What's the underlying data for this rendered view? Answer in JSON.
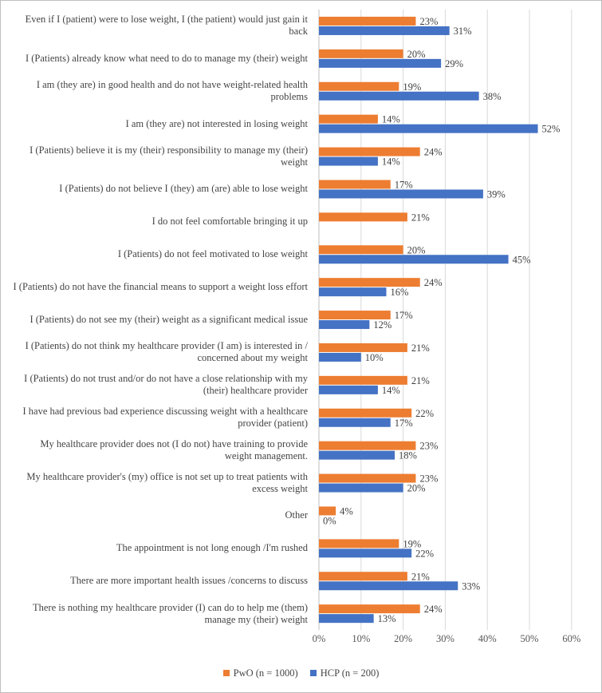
{
  "chart_data": {
    "type": "bar",
    "orientation": "horizontal",
    "categories": [
      "Even if I (patient) were to lose weight, I (the patient) would just gain it back",
      "I (Patients) already know what need to do to manage my (their) weight",
      "I am (they are) in good health and do not have weight-related health problems",
      "I am (they are) not interested in losing weight",
      "I (Patients) believe it is my (their) responsibility to manage my (their) weight",
      "I (Patients) do not believe I (they) am (are) able to lose weight",
      "I do not feel comfortable bringing it up",
      "I (Patients) do not feel motivated to lose weight",
      "I (Patients) do not have the financial means to support a weight loss effort",
      "I (Patients) do not see my (their) weight as a significant medical issue",
      "I (Patients) do not think my healthcare provider (I am) is interested in / concerned about my weight",
      "I (Patients) do not trust and/or do not have a close relationship with my (their) healthcare provider",
      "I have had previous bad experience discussing weight with a healthcare provider (patient)",
      "My healthcare provider does not (I do not) have training to provide weight management.",
      "My healthcare provider's (my) office is not set up to treat patients with excess weight",
      "Other",
      "The appointment is not long enough /I'm rushed",
      "There are more important health issues /concerns to discuss",
      "There is nothing my healthcare provider (I) can do to help me (them) manage my (their) weight"
    ],
    "series": [
      {
        "name": "PwO (n = 1000)",
        "color": "#ED7D31",
        "values": [
          23,
          20,
          19,
          14,
          24,
          17,
          21,
          20,
          24,
          17,
          21,
          21,
          22,
          23,
          23,
          4,
          19,
          21,
          24
        ],
        "labels": [
          "23%",
          "20%",
          "19%",
          "14%",
          "24%",
          "17%",
          "21%",
          "20%",
          "24%",
          "17%",
          "21%",
          "21%",
          "22%",
          "23%",
          "23%",
          "4%",
          "19%",
          "21%",
          "24%"
        ]
      },
      {
        "name": "HCP (n = 200)",
        "color": "#4472C4",
        "values": [
          31,
          29,
          38,
          52,
          14,
          39,
          null,
          45,
          16,
          12,
          10,
          14,
          17,
          18,
          20,
          0,
          22,
          33,
          13
        ],
        "labels": [
          "31%",
          "29%",
          "38%",
          "52%",
          "14%",
          "39%",
          "",
          "45%",
          "16%",
          "12%",
          "10%",
          "14%",
          "17%",
          "18%",
          "20%",
          "0%",
          "22%",
          "33%",
          "13%"
        ]
      }
    ],
    "xlim": [
      0,
      60
    ],
    "xticks": [
      0,
      10,
      20,
      30,
      40,
      50,
      60
    ],
    "xtick_labels": [
      "0%",
      "10%",
      "20%",
      "30%",
      "40%",
      "50%",
      "60%"
    ],
    "grid": true,
    "legend_position": "bottom",
    "title": "",
    "xlabel": "",
    "ylabel": ""
  }
}
